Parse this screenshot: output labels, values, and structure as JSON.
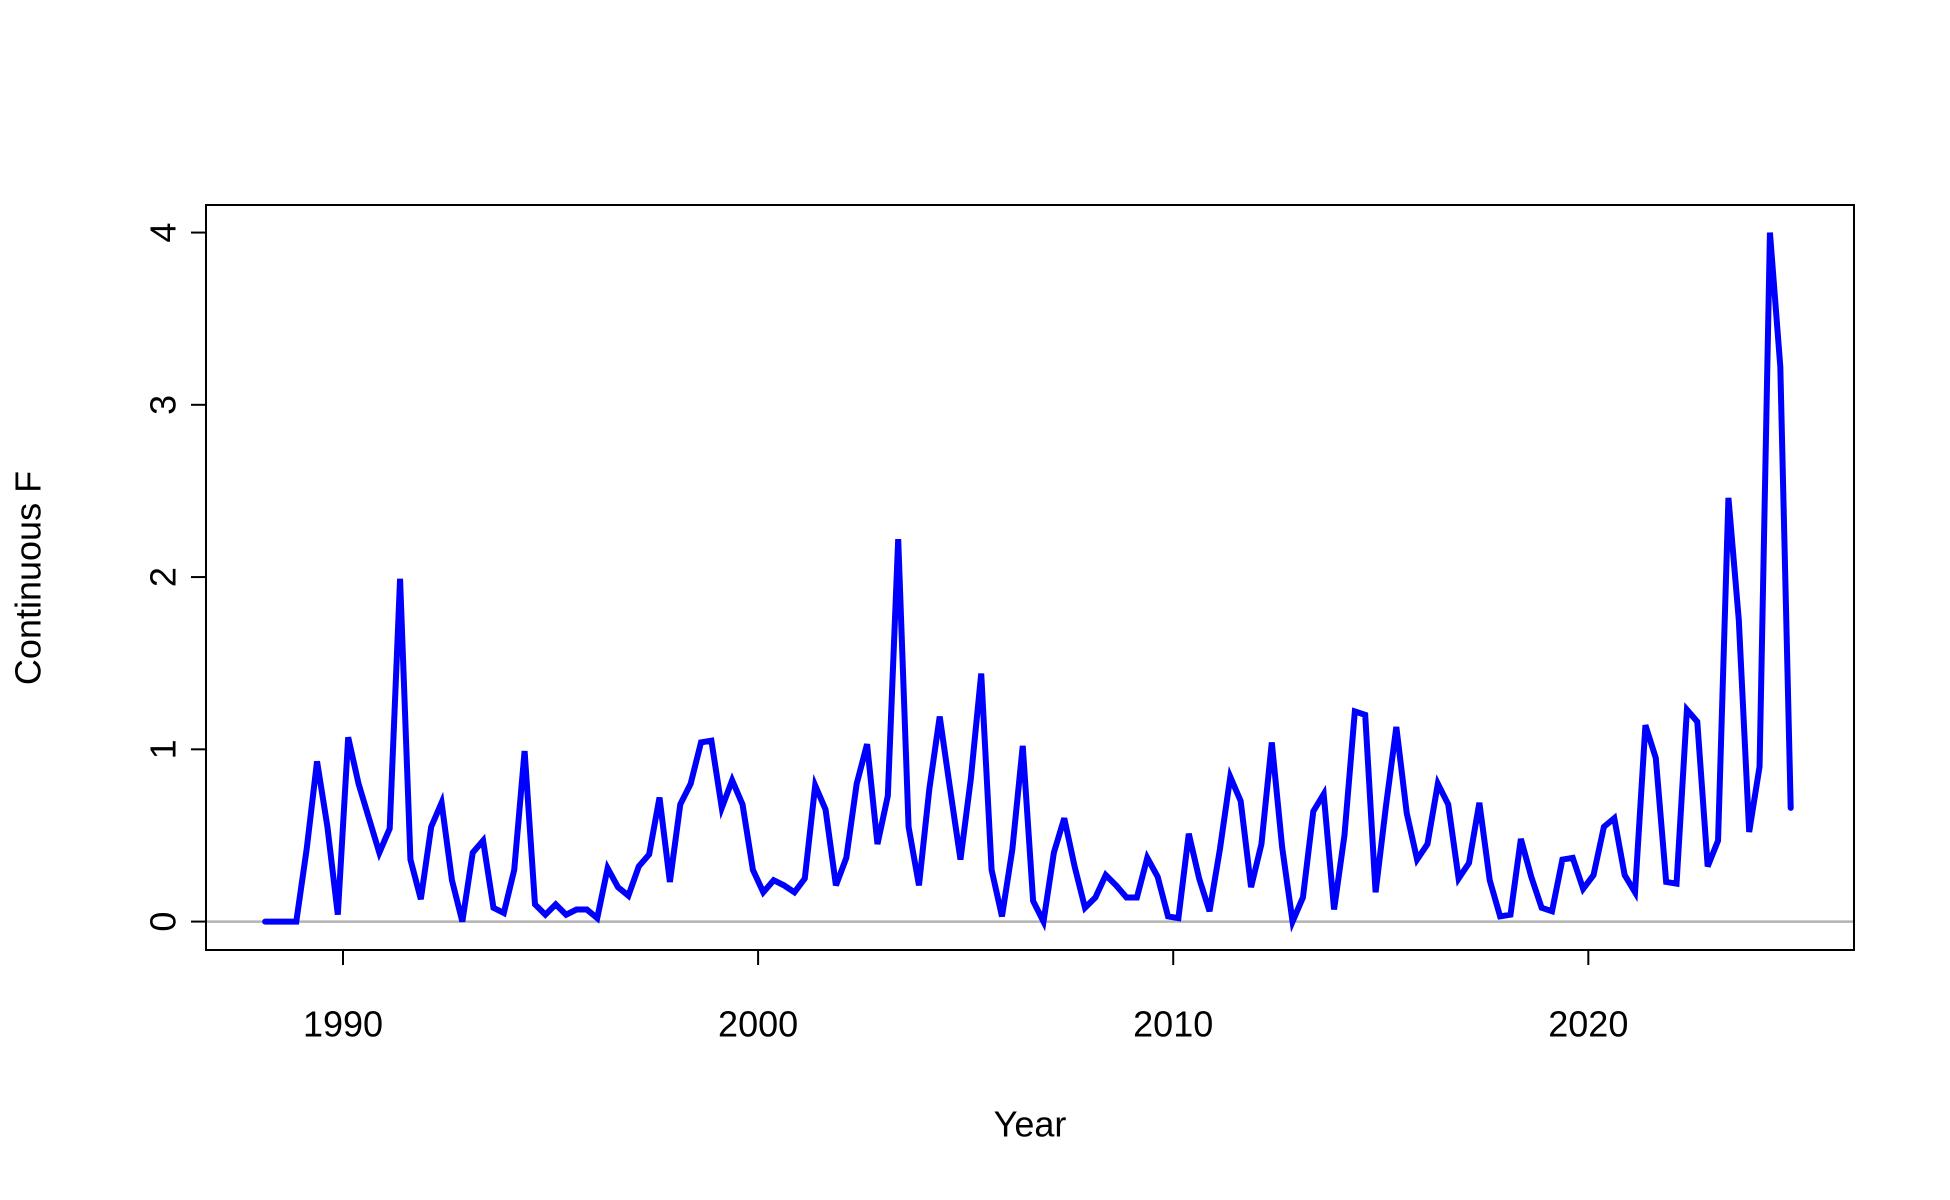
{
  "chart_data": {
    "type": "line",
    "x_label": "Year",
    "y_label": "Continuous F",
    "x": [
      1988.125,
      1988.375,
      1988.625,
      1988.875,
      1989.125,
      1989.375,
      1989.625,
      1989.875,
      1990.125,
      1990.375,
      1990.625,
      1990.875,
      1991.125,
      1991.375,
      1991.625,
      1991.875,
      1992.125,
      1992.375,
      1992.625,
      1992.875,
      1993.125,
      1993.375,
      1993.625,
      1993.875,
      1994.125,
      1994.375,
      1994.625,
      1994.875,
      1995.125,
      1995.375,
      1995.625,
      1995.875,
      1996.125,
      1996.375,
      1996.625,
      1996.875,
      1997.125,
      1997.375,
      1997.625,
      1997.875,
      1998.125,
      1998.375,
      1998.625,
      1998.875,
      1999.125,
      1999.375,
      1999.625,
      1999.875,
      2000.125,
      2000.375,
      2000.625,
      2000.875,
      2001.125,
      2001.375,
      2001.625,
      2001.875,
      2002.125,
      2002.375,
      2002.625,
      2002.875,
      2003.125,
      2003.375,
      2003.625,
      2003.875,
      2004.125,
      2004.375,
      2004.625,
      2004.875,
      2005.125,
      2005.375,
      2005.625,
      2005.875,
      2006.125,
      2006.375,
      2006.625,
      2006.875,
      2007.125,
      2007.375,
      2007.625,
      2007.875,
      2008.125,
      2008.375,
      2008.625,
      2008.875,
      2009.125,
      2009.375,
      2009.625,
      2009.875,
      2010.125,
      2010.375,
      2010.625,
      2010.875,
      2011.125,
      2011.375,
      2011.625,
      2011.875,
      2012.125,
      2012.375,
      2012.625,
      2012.875,
      2013.125,
      2013.375,
      2013.625,
      2013.875,
      2014.125,
      2014.375,
      2014.625,
      2014.875,
      2015.125,
      2015.375,
      2015.625,
      2015.875,
      2016.125,
      2016.375,
      2016.625,
      2016.875,
      2017.125,
      2017.375,
      2017.625,
      2017.875,
      2018.125,
      2018.375,
      2018.625,
      2018.875,
      2019.125,
      2019.375,
      2019.625,
      2019.875,
      2020.125,
      2020.375,
      2020.625,
      2020.875,
      2021.125,
      2021.375,
      2021.625,
      2021.875,
      2022.125,
      2022.375,
      2022.625,
      2022.875,
      2023.125,
      2023.375,
      2023.625,
      2023.875,
      2024.125,
      2024.375,
      2024.625,
      2024.875
    ],
    "series": [
      {
        "color": "#0000ff",
        "values": [
          0,
          0,
          0,
          0,
          0.42,
          0.93,
          0.55,
          0.04,
          1.07,
          0.8,
          0.6,
          0.4,
          0.54,
          1.99,
          0.36,
          0.13,
          0.55,
          0.69,
          0.24,
          0,
          0.4,
          0.47,
          0.08,
          0.05,
          0.3,
          0.99,
          0.1,
          0.04,
          0.1,
          0.04,
          0.07,
          0.07,
          0.02,
          0.31,
          0.2,
          0.15,
          0.32,
          0.39,
          0.72,
          0.23,
          0.68,
          0.8,
          1.04,
          1.05,
          0.66,
          0.82,
          0.68,
          0.3,
          0.17,
          0.24,
          0.21,
          0.17,
          0.25,
          0.79,
          0.65,
          0.21,
          0.37,
          0.8,
          1.03,
          0.45,
          0.73,
          2.22,
          0.55,
          0.21,
          0.77,
          1.19,
          0.77,
          0.36,
          0.83,
          1.44,
          0.3,
          0.03,
          0.42,
          1.02,
          0.12,
          0,
          0.4,
          0.6,
          0.32,
          0.08,
          0.14,
          0.27,
          0.21,
          0.14,
          0.14,
          0.37,
          0.26,
          0.03,
          0.02,
          0.51,
          0.25,
          0.06,
          0.42,
          0.84,
          0.7,
          0.2,
          0.45,
          1.04,
          0.43,
          0,
          0.14,
          0.64,
          0.74,
          0.07,
          0.5,
          1.22,
          1.2,
          0.17,
          0.67,
          1.13,
          0.63,
          0.36,
          0.45,
          0.8,
          0.68,
          0.25,
          0.34,
          0.69,
          0.24,
          0.03,
          0.04,
          0.48,
          0.26,
          0.08,
          0.06,
          0.36,
          0.37,
          0.19,
          0.27,
          0.55,
          0.6,
          0.27,
          0.17,
          1.14,
          0.95,
          0.23,
          0.22,
          1.23,
          1.16,
          0.32,
          0.47,
          2.46,
          1.75,
          0.52,
          0.9,
          4,
          3.22,
          0.66
        ]
      }
    ],
    "xlim": [
      1986.7,
      2026.4
    ],
    "xticks": [
      1990,
      2000,
      2010,
      2020
    ],
    "ylim": [
      -0.165,
      4.16
    ],
    "yticks": [
      0,
      1,
      2,
      3,
      4
    ],
    "hline": 0,
    "hline_color": "#b3b3b3",
    "grid": false
  }
}
